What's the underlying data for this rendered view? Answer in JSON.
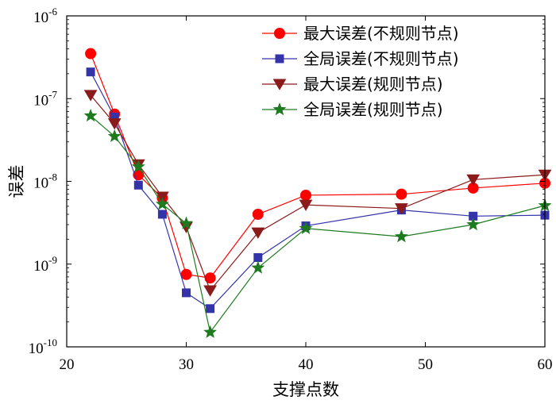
{
  "chart_data": {
    "type": "line",
    "title": "",
    "xlabel": "支撑点数",
    "ylabel": "误差",
    "xlim": [
      20,
      60
    ],
    "ylim": [
      1e-10,
      1e-06
    ],
    "yscale": "log",
    "xticks": [
      20,
      30,
      40,
      50,
      60
    ],
    "yticks": [
      {
        "value": 1e-10,
        "base": "10",
        "exp": "-10"
      },
      {
        "value": 1e-09,
        "base": "10",
        "exp": "-9"
      },
      {
        "value": 1e-08,
        "base": "10",
        "exp": "-8"
      },
      {
        "value": 1e-07,
        "base": "10",
        "exp": "-7"
      },
      {
        "value": 1e-06,
        "base": "10",
        "exp": "-6"
      }
    ],
    "grid": false,
    "legend_position": "top-right",
    "series": [
      {
        "name": "最大误差(不规则节点)",
        "color": "#ff0000",
        "marker": "circle",
        "x": [
          22,
          24,
          26,
          28,
          30,
          32,
          36,
          40,
          48,
          54,
          60
        ],
        "y": [
          3.5e-07,
          6.5e-08,
          1.2e-08,
          6.3e-09,
          7.5e-10,
          6.8e-10,
          4e-09,
          6.8e-09,
          7e-09,
          8.3e-09,
          9.5e-09
        ]
      },
      {
        "name": "全局误差(不规则节点)",
        "color": "#3333aa",
        "marker": "square",
        "x": [
          22,
          24,
          26,
          28,
          30,
          32,
          36,
          40,
          48,
          54,
          60
        ],
        "y": [
          2.1e-07,
          6e-08,
          9e-09,
          4e-09,
          4.5e-10,
          2.9e-10,
          1.2e-09,
          2.9e-09,
          4.5e-09,
          3.8e-09,
          3.9e-09
        ]
      },
      {
        "name": "最大误差(规则节点)",
        "color": "#8b1a1a",
        "marker": "triangle-down",
        "x": [
          22,
          24,
          26,
          28,
          30,
          32,
          36,
          40,
          48,
          54,
          60
        ],
        "y": [
          1.1e-07,
          5e-08,
          1.6e-08,
          6.5e-09,
          2.8e-09,
          4.8e-10,
          2.4e-09,
          5.2e-09,
          4.7e-09,
          1.05e-08,
          1.2e-08
        ]
      },
      {
        "name": "全局误差(规则节点)",
        "color": "#1e7a1e",
        "marker": "star",
        "x": [
          22,
          24,
          26,
          28,
          30,
          32,
          36,
          40,
          48,
          54,
          60
        ],
        "y": [
          6.2e-08,
          3.5e-08,
          1.5e-08,
          5.3e-09,
          3.1e-09,
          1.5e-10,
          9e-10,
          2.7e-09,
          2.15e-09,
          3e-09,
          5.1e-09
        ]
      }
    ]
  }
}
